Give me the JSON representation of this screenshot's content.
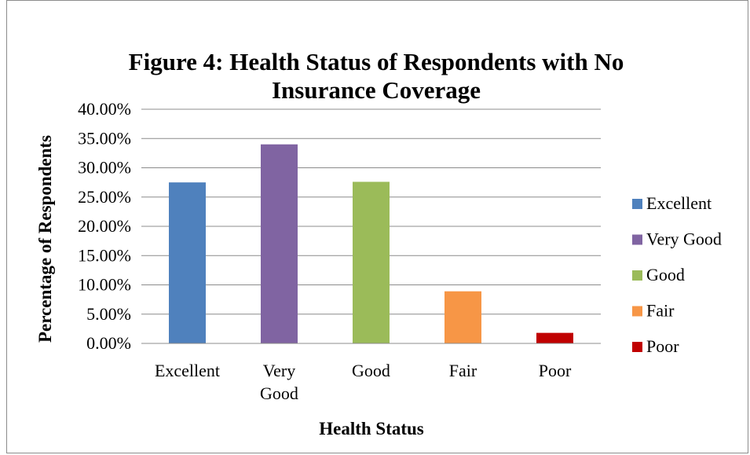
{
  "chart_data": {
    "type": "bar",
    "title": "Figure 4: Health Status of Respondents with No Insurance Coverage",
    "title_lines": [
      "Figure 4: Health Status of Respondents with No",
      "Insurance Coverage"
    ],
    "xlabel": "Health Status",
    "ylabel": "Percentage of Respondents",
    "categories": [
      "Excellent",
      "Very Good",
      "Good",
      "Fair",
      "Poor"
    ],
    "category_tick_lines": [
      [
        "Excellent"
      ],
      [
        "Very",
        "Good"
      ],
      [
        "Good"
      ],
      [
        "Fair"
      ],
      [
        "Poor"
      ]
    ],
    "values": [
      27.5,
      34.0,
      27.6,
      8.9,
      1.8
    ],
    "colors": [
      "#4F81BD",
      "#8064A2",
      "#9BBB59",
      "#F79646",
      "#C00000"
    ],
    "ylim": [
      0,
      40
    ],
    "yticks": [
      0,
      5,
      10,
      15,
      20,
      25,
      30,
      35,
      40
    ],
    "ytick_labels": [
      "0.00%",
      "5.00%",
      "10.00%",
      "15.00%",
      "20.00%",
      "25.00%",
      "30.00%",
      "35.00%",
      "40.00%"
    ],
    "grid": true,
    "legend": {
      "placement": "right",
      "entries": [
        "Excellent",
        "Very Good",
        "Good",
        "Fair",
        "Poor"
      ]
    }
  }
}
